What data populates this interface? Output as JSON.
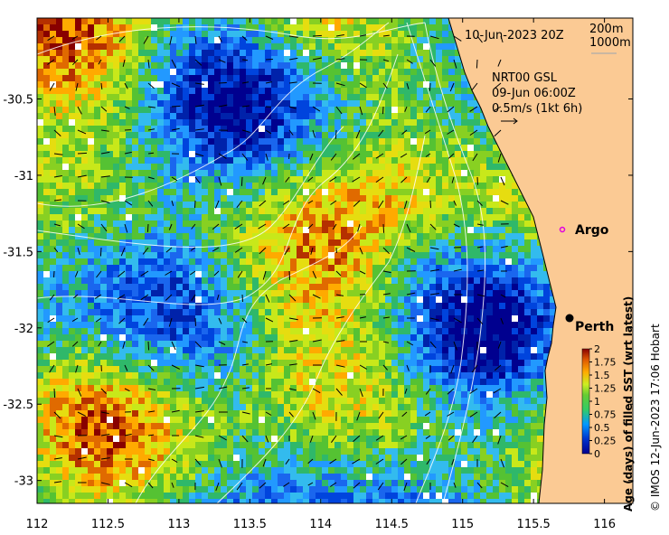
{
  "map": {
    "title": "10-Jun-2023 20Z",
    "bathy_legend": [
      "200m",
      "1000m"
    ],
    "current_source": "NRT00 GSL",
    "current_time": "09-Jun 06:00Z",
    "current_scale": "0.5m/s (1kt 6h)",
    "places": [
      {
        "name": "Argo",
        "lon": 115.85,
        "lat": -31.47
      },
      {
        "name": "Perth",
        "lon": 115.86,
        "lat": -31.95
      }
    ],
    "lon_range": [
      112,
      116.2
    ],
    "lat_range": [
      -33.15,
      -29.97
    ],
    "lon_ticks": [
      "112",
      "112.5",
      "113",
      "113.5",
      "114",
      "114.5",
      "115",
      "115.5",
      "116"
    ],
    "lat_ticks": [
      "-30.5",
      "-31",
      "-31.5",
      "-32",
      "-32.5",
      "-33"
    ],
    "colors": {
      "land": "#fbca94",
      "ocean_low": "#0a1e8c",
      "ocean_high": "#8c1e0a"
    }
  },
  "colorbar": {
    "label": "Age (days) of filled SST (wrt latest)",
    "ticks": [
      "2",
      "1.75",
      "1.5",
      "1.25",
      "1",
      "0.75",
      "0.5",
      "0.25",
      "0"
    ],
    "range": [
      0,
      2
    ]
  },
  "credit": "© IMOS 12-Jun-2023 17:06 Hobart"
}
